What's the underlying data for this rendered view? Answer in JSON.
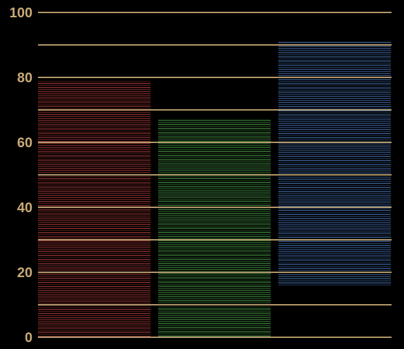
{
  "chart_data": {
    "type": "bar",
    "title": "",
    "xlabel": "",
    "ylabel": "",
    "ylim": [
      0,
      100
    ],
    "y_ticks": [
      0,
      10,
      20,
      30,
      40,
      50,
      60,
      70,
      80,
      90,
      100
    ],
    "y_tick_labels": [
      "0",
      "20",
      "40",
      "60",
      "80",
      "100"
    ],
    "grid": true,
    "legend": "none",
    "bar_style": "horizontal line hatching",
    "categories": [
      "",
      "",
      ""
    ],
    "series": [
      {
        "values": [
          79,
          67,
          91
        ],
        "segments": [
          {
            "start": 0,
            "end": 79
          },
          {
            "start": 0,
            "end": 67
          },
          {
            "start": 16,
            "end": 91
          }
        ]
      }
    ],
    "colors": {
      "background": "#000000",
      "grid": "#b49a6a",
      "tick_text": "#c8a975",
      "bars": [
        "#d44a4a",
        "#5fc95f",
        "#5a8fe0"
      ]
    }
  }
}
